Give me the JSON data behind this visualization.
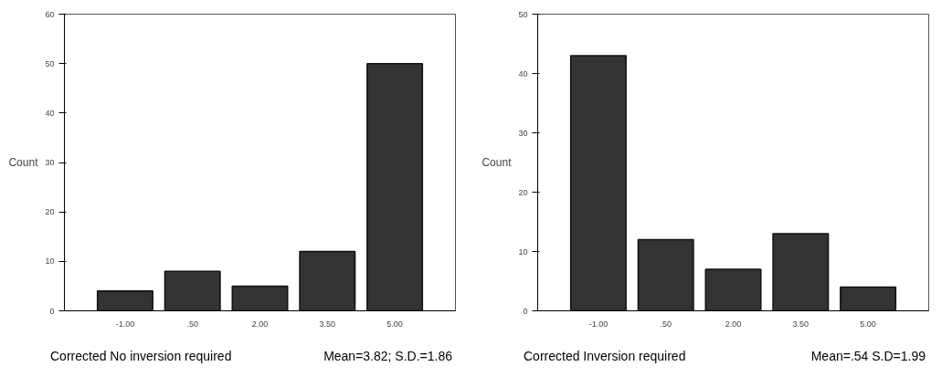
{
  "chart_data": [
    {
      "type": "bar",
      "categories": [
        "-1.00",
        ".50",
        "2.00",
        "3.50",
        "5.00"
      ],
      "values": [
        4,
        8,
        5,
        12,
        50
      ],
      "color": "#333333",
      "ylim": [
        0,
        60
      ],
      "yticks": [
        0,
        10,
        20,
        30,
        40,
        50,
        60
      ],
      "ylabel": "Count",
      "xlabel": "Corrected No inversion required",
      "annotations": [
        "Mean=3.82; S.D.=1.86"
      ],
      "grid": false
    },
    {
      "type": "bar",
      "categories": [
        "-1.00",
        ".50",
        "2.00",
        "3.50",
        "5.00"
      ],
      "values": [
        43,
        12,
        7,
        13,
        4
      ],
      "color": "#333333",
      "ylim": [
        0,
        50
      ],
      "yticks": [
        0,
        10,
        20,
        30,
        40,
        50
      ],
      "ylabel": "Count",
      "xlabel": "Corrected Inversion required",
      "annotations": [
        "Mean=.54 S.D=1.99"
      ],
      "grid": false
    }
  ]
}
